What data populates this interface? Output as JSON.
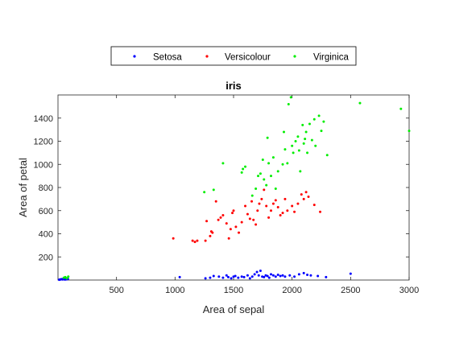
{
  "chart_data": {
    "type": "scatter",
    "title": "iris",
    "xlabel": "Area of sepal",
    "ylabel": "Area of petal",
    "xlim": [
      0,
      3000
    ],
    "ylim": [
      0,
      1600
    ],
    "xticks": [
      500,
      1000,
      1500,
      2000,
      2500,
      3000
    ],
    "yticks": [
      200,
      400,
      600,
      800,
      1000,
      1200,
      1400
    ],
    "grid": false,
    "legend_position": "top-center, above plot, horizontal",
    "series": [
      {
        "name": "Setosa",
        "color": "#0000ff",
        "points": [
          [
            10,
            3
          ],
          [
            18,
            4
          ],
          [
            25,
            6
          ],
          [
            32,
            8
          ],
          [
            40,
            5
          ],
          [
            55,
            7
          ],
          [
            62,
            9
          ],
          [
            70,
            6
          ],
          [
            78,
            8
          ],
          [
            85,
            10
          ],
          [
            48,
            12
          ],
          [
            60,
            4
          ],
          [
            1040,
            25
          ],
          [
            1260,
            15
          ],
          [
            1300,
            20
          ],
          [
            1330,
            35
          ],
          [
            1375,
            30
          ],
          [
            1410,
            20
          ],
          [
            1440,
            40
          ],
          [
            1455,
            25
          ],
          [
            1480,
            15
          ],
          [
            1500,
            30
          ],
          [
            1515,
            35
          ],
          [
            1540,
            20
          ],
          [
            1570,
            30
          ],
          [
            1590,
            25
          ],
          [
            1620,
            40
          ],
          [
            1640,
            15
          ],
          [
            1660,
            30
          ],
          [
            1680,
            50
          ],
          [
            1700,
            70
          ],
          [
            1715,
            40
          ],
          [
            1730,
            80
          ],
          [
            1745,
            30
          ],
          [
            1760,
            25
          ],
          [
            1775,
            40
          ],
          [
            1790,
            35
          ],
          [
            1805,
            20
          ],
          [
            1820,
            50
          ],
          [
            1840,
            40
          ],
          [
            1860,
            30
          ],
          [
            1880,
            45
          ],
          [
            1900,
            35
          ],
          [
            1920,
            40
          ],
          [
            1940,
            30
          ],
          [
            1980,
            40
          ],
          [
            2020,
            30
          ],
          [
            2060,
            50
          ],
          [
            2100,
            60
          ],
          [
            2130,
            45
          ],
          [
            2160,
            40
          ],
          [
            2220,
            35
          ],
          [
            2290,
            25
          ],
          [
            2500,
            55
          ]
        ]
      },
      {
        "name": "Versicolour",
        "color": "#ff0000",
        "points": [
          [
            985,
            360
          ],
          [
            1150,
            340
          ],
          [
            1170,
            330
          ],
          [
            1190,
            340
          ],
          [
            1260,
            340
          ],
          [
            1270,
            510
          ],
          [
            1300,
            380
          ],
          [
            1310,
            420
          ],
          [
            1320,
            410
          ],
          [
            1350,
            680
          ],
          [
            1370,
            520
          ],
          [
            1390,
            540
          ],
          [
            1410,
            560
          ],
          [
            1440,
            490
          ],
          [
            1460,
            360
          ],
          [
            1475,
            440
          ],
          [
            1490,
            580
          ],
          [
            1500,
            600
          ],
          [
            1520,
            460
          ],
          [
            1545,
            410
          ],
          [
            1570,
            500
          ],
          [
            1600,
            640
          ],
          [
            1620,
            570
          ],
          [
            1640,
            530
          ],
          [
            1655,
            680
          ],
          [
            1670,
            520
          ],
          [
            1690,
            480
          ],
          [
            1705,
            600
          ],
          [
            1720,
            660
          ],
          [
            1740,
            700
          ],
          [
            1760,
            780
          ],
          [
            1780,
            640
          ],
          [
            1800,
            540
          ],
          [
            1820,
            600
          ],
          [
            1840,
            660
          ],
          [
            1860,
            690
          ],
          [
            1880,
            630
          ],
          [
            1900,
            560
          ],
          [
            1920,
            580
          ],
          [
            1940,
            700
          ],
          [
            1960,
            600
          ],
          [
            2000,
            640
          ],
          [
            2020,
            590
          ],
          [
            2050,
            660
          ],
          [
            2080,
            740
          ],
          [
            2100,
            700
          ],
          [
            2120,
            760
          ],
          [
            2140,
            720
          ],
          [
            2190,
            650
          ],
          [
            2240,
            590
          ]
        ]
      },
      {
        "name": "Virginica",
        "color": "#00ee00",
        "points": [
          [
            50,
            20
          ],
          [
            62,
            25
          ],
          [
            75,
            15
          ],
          [
            88,
            30
          ],
          [
            1250,
            760
          ],
          [
            1330,
            780
          ],
          [
            1410,
            1010
          ],
          [
            1570,
            930
          ],
          [
            1580,
            960
          ],
          [
            1600,
            980
          ],
          [
            1660,
            730
          ],
          [
            1690,
            790
          ],
          [
            1710,
            900
          ],
          [
            1730,
            920
          ],
          [
            1750,
            1040
          ],
          [
            1760,
            870
          ],
          [
            1780,
            820
          ],
          [
            1790,
            1230
          ],
          [
            1800,
            1010
          ],
          [
            1820,
            900
          ],
          [
            1840,
            1060
          ],
          [
            1860,
            790
          ],
          [
            1880,
            940
          ],
          [
            1920,
            1000
          ],
          [
            1930,
            1280
          ],
          [
            1940,
            1130
          ],
          [
            1960,
            1010
          ],
          [
            1970,
            1520
          ],
          [
            1990,
            1580
          ],
          [
            2000,
            1160
          ],
          [
            2010,
            1100
          ],
          [
            2030,
            1200
          ],
          [
            2050,
            1240
          ],
          [
            2060,
            1120
          ],
          [
            2070,
            940
          ],
          [
            2090,
            1340
          ],
          [
            2100,
            1180
          ],
          [
            2110,
            1220
          ],
          [
            2120,
            1280
          ],
          [
            2130,
            1100
          ],
          [
            2150,
            1350
          ],
          [
            2170,
            1210
          ],
          [
            2190,
            1390
          ],
          [
            2200,
            1160
          ],
          [
            2230,
            1420
          ],
          [
            2250,
            1290
          ],
          [
            2270,
            1370
          ],
          [
            2300,
            1080
          ],
          [
            2580,
            1530
          ],
          [
            2930,
            1480
          ],
          [
            3000,
            1290
          ]
        ]
      }
    ]
  }
}
